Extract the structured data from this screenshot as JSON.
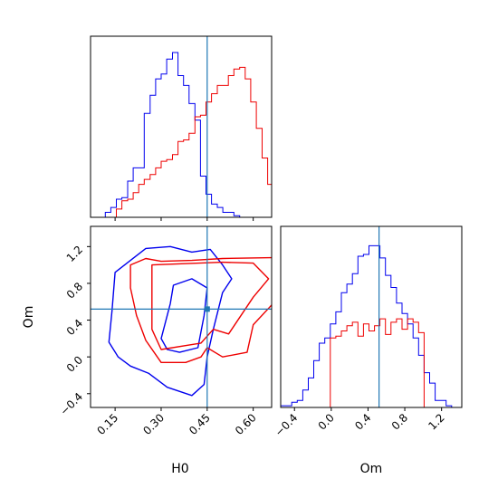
{
  "chart_data": {
    "type": "corner",
    "parameters": [
      "H0",
      "Om"
    ],
    "truths": {
      "H0": 0.45,
      "Om": 0.52
    },
    "colors": {
      "blue": "#0000ee",
      "red": "#ee0000",
      "truth": "#1f77b4"
    },
    "axes": {
      "H0": {
        "label": "H0",
        "range": [
          0.07,
          0.66
        ],
        "ticks": [
          0.15,
          0.3,
          0.45,
          0.6
        ],
        "tick_labels": [
          "0.15",
          "0.30",
          "0.45",
          "0.60"
        ]
      },
      "Om": {
        "label": "Om",
        "range": [
          -0.55,
          1.42
        ],
        "ticks": [
          -0.4,
          0.0,
          0.4,
          0.8,
          1.2
        ],
        "tick_labels": [
          "−0.4",
          "0.0",
          "0.4",
          "0.8",
          "1.2"
        ]
      }
    },
    "hist_H0": {
      "bins": [
        0.081,
        0.099,
        0.118,
        0.136,
        0.154,
        0.172,
        0.191,
        0.209,
        0.227,
        0.245,
        0.264,
        0.282,
        0.3,
        0.318,
        0.337,
        0.355,
        0.373,
        0.391,
        0.41,
        0.428,
        0.446,
        0.464,
        0.483,
        0.501,
        0.519,
        0.537,
        0.556,
        0.574,
        0.592,
        0.61,
        0.629,
        0.647,
        0.665
      ],
      "series": [
        {
          "color": "blue",
          "counts": [
            0,
            0,
            0.03,
            0.06,
            0.11,
            0.12,
            0.22,
            0.3,
            0.3,
            0.63,
            0.74,
            0.84,
            0.87,
            0.96,
            1.0,
            0.86,
            0.8,
            0.69,
            0.59,
            0.25,
            0.14,
            0.08,
            0.06,
            0.03,
            0.03,
            0.01,
            0,
            0,
            0,
            0,
            0,
            0
          ]
        },
        {
          "color": "red",
          "counts": [
            0,
            0,
            0,
            0,
            0.05,
            0.1,
            0.11,
            0.15,
            0.2,
            0.23,
            0.26,
            0.3,
            0.34,
            0.35,
            0.38,
            0.46,
            0.47,
            0.51,
            0.61,
            0.62,
            0.7,
            0.75,
            0.8,
            0.8,
            0.86,
            0.9,
            0.91,
            0.84,
            0.7,
            0.54,
            0.36,
            0.2
          ]
        }
      ]
    },
    "hist_Om": {
      "bins": [
        -0.55,
        -0.49,
        -0.43,
        -0.37,
        -0.31,
        -0.25,
        -0.19,
        -0.13,
        -0.07,
        -0.01,
        0.05,
        0.11,
        0.17,
        0.23,
        0.29,
        0.35,
        0.41,
        0.47,
        0.53,
        0.59,
        0.65,
        0.71,
        0.77,
        0.83,
        0.89,
        0.95,
        1.01,
        1.07,
        1.13,
        1.19,
        1.25,
        1.31
      ],
      "series": [
        {
          "color": "blue",
          "counts": [
            0.01,
            0.01,
            0.03,
            0.04,
            0.1,
            0.17,
            0.27,
            0.37,
            0.4,
            0.48,
            0.55,
            0.66,
            0.71,
            0.77,
            0.87,
            0.88,
            0.93,
            0.93,
            0.86,
            0.76,
            0.69,
            0.6,
            0.54,
            0.48,
            0.4,
            0.3,
            0.2,
            0.14,
            0.04,
            0.04,
            0.01
          ]
        },
        {
          "color": "red",
          "counts": [
            0,
            0,
            0,
            0,
            0,
            0,
            0,
            0,
            0,
            0.4,
            0.41,
            0.44,
            0.47,
            0.49,
            0.41,
            0.48,
            0.44,
            0.47,
            0.51,
            0.42,
            0.49,
            0.51,
            0.45,
            0.51,
            0.49,
            0.43,
            0,
            0,
            0,
            0,
            0
          ]
        }
      ]
    },
    "contours_H0_Om": [
      {
        "color": "blue",
        "level": "outer",
        "points": [
          [
            0.16,
            0.0
          ],
          [
            0.13,
            0.16
          ],
          [
            0.14,
            0.5
          ],
          [
            0.15,
            0.92
          ],
          [
            0.2,
            1.05
          ],
          [
            0.25,
            1.18
          ],
          [
            0.33,
            1.2
          ],
          [
            0.4,
            1.14
          ],
          [
            0.46,
            1.17
          ],
          [
            0.5,
            1.0
          ],
          [
            0.53,
            0.85
          ],
          [
            0.5,
            0.7
          ],
          [
            0.47,
            0.3
          ],
          [
            0.45,
            0.0
          ],
          [
            0.44,
            -0.3
          ],
          [
            0.4,
            -0.42
          ],
          [
            0.32,
            -0.33
          ],
          [
            0.26,
            -0.18
          ],
          [
            0.2,
            -0.1
          ],
          [
            0.16,
            0.0
          ]
        ]
      },
      {
        "color": "blue",
        "level": "inner",
        "points": [
          [
            0.3,
            0.2
          ],
          [
            0.33,
            0.58
          ],
          [
            0.34,
            0.78
          ],
          [
            0.4,
            0.85
          ],
          [
            0.45,
            0.75
          ],
          [
            0.44,
            0.45
          ],
          [
            0.42,
            0.1
          ],
          [
            0.36,
            0.05
          ],
          [
            0.32,
            0.08
          ],
          [
            0.3,
            0.2
          ]
        ]
      },
      {
        "color": "red",
        "level": "outer",
        "points": [
          [
            0.2,
            1.0
          ],
          [
            0.25,
            1.07
          ],
          [
            0.3,
            1.04
          ],
          [
            0.4,
            1.05
          ],
          [
            0.5,
            1.07
          ],
          [
            0.67,
            1.08
          ],
          [
            0.67,
            0.6
          ],
          [
            0.6,
            0.35
          ],
          [
            0.58,
            0.05
          ],
          [
            0.5,
            0.0
          ],
          [
            0.45,
            0.1
          ],
          [
            0.43,
            0.0
          ],
          [
            0.38,
            -0.06
          ],
          [
            0.3,
            -0.06
          ],
          [
            0.25,
            0.18
          ],
          [
            0.22,
            0.45
          ],
          [
            0.2,
            0.75
          ],
          [
            0.2,
            1.0
          ]
        ]
      },
      {
        "color": "red",
        "level": "inner",
        "points": [
          [
            0.27,
            0.3
          ],
          [
            0.27,
            1.0
          ],
          [
            0.5,
            1.03
          ],
          [
            0.6,
            1.02
          ],
          [
            0.65,
            0.85
          ],
          [
            0.6,
            0.65
          ],
          [
            0.52,
            0.25
          ],
          [
            0.47,
            0.3
          ],
          [
            0.43,
            0.15
          ],
          [
            0.3,
            0.08
          ],
          [
            0.27,
            0.3
          ]
        ]
      }
    ]
  }
}
